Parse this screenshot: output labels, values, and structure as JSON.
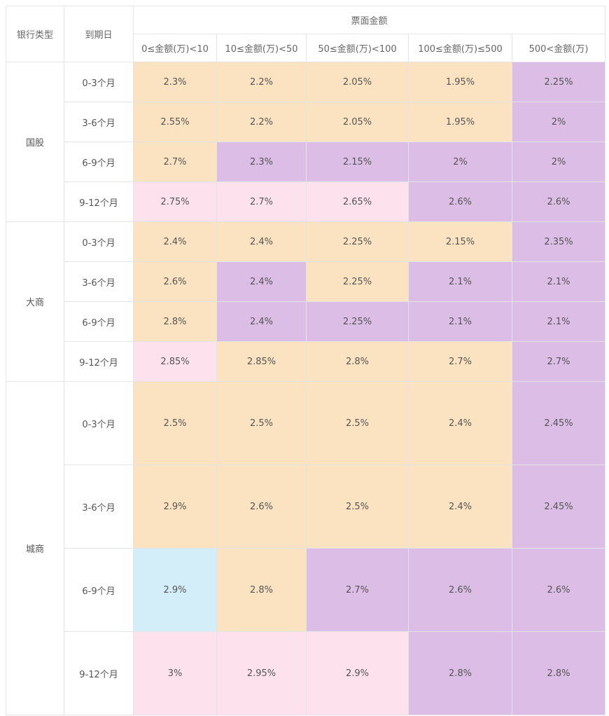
{
  "header": {
    "bank_type": "银行类型",
    "maturity": "到期日",
    "face_amount": "票面金额",
    "amount_ranges": [
      "0≤金额(万)<10",
      "10≤金额(万)<50",
      "50≤金额(万)<100",
      "100≤金额(万)≤500",
      "500<金额(万)"
    ]
  },
  "colors": {
    "peach": "#fbe3c1",
    "purple": "#dcbde5",
    "pink": "#fde2ee",
    "blue": "#d4eef9"
  },
  "groups": [
    {
      "name": "国股",
      "rows": [
        {
          "maturity": "0-3个月",
          "values": [
            "2.3%",
            "2.2%",
            "2.05%",
            "1.95%",
            "2.25%"
          ],
          "colors": [
            "peach",
            "peach",
            "peach",
            "peach",
            "purple"
          ]
        },
        {
          "maturity": "3-6个月",
          "values": [
            "2.55%",
            "2.2%",
            "2.05%",
            "1.95%",
            "2%"
          ],
          "colors": [
            "peach",
            "peach",
            "peach",
            "peach",
            "purple"
          ]
        },
        {
          "maturity": "6-9个月",
          "values": [
            "2.7%",
            "2.3%",
            "2.15%",
            "2%",
            "2%"
          ],
          "colors": [
            "peach",
            "purple",
            "purple",
            "purple",
            "purple"
          ]
        },
        {
          "maturity": "9-12个月",
          "values": [
            "2.75%",
            "2.7%",
            "2.65%",
            "2.6%",
            "2.6%"
          ],
          "colors": [
            "pink",
            "pink",
            "pink",
            "purple",
            "purple"
          ]
        }
      ]
    },
    {
      "name": "大商",
      "rows": [
        {
          "maturity": "0-3个月",
          "values": [
            "2.4%",
            "2.4%",
            "2.25%",
            "2.15%",
            "2.35%"
          ],
          "colors": [
            "peach",
            "peach",
            "peach",
            "peach",
            "purple"
          ]
        },
        {
          "maturity": "3-6个月",
          "values": [
            "2.6%",
            "2.4%",
            "2.25%",
            "2.1%",
            "2.1%"
          ],
          "colors": [
            "peach",
            "purple",
            "peach",
            "purple",
            "purple"
          ]
        },
        {
          "maturity": "6-9个月",
          "values": [
            "2.8%",
            "2.4%",
            "2.25%",
            "2.1%",
            "2.1%"
          ],
          "colors": [
            "peach",
            "purple",
            "purple",
            "purple",
            "purple"
          ]
        },
        {
          "maturity": "9-12个月",
          "values": [
            "2.85%",
            "2.85%",
            "2.8%",
            "2.7%",
            "2.7%"
          ],
          "colors": [
            "pink",
            "peach",
            "peach",
            "peach",
            "purple"
          ]
        }
      ]
    },
    {
      "name": "城商",
      "rows": [
        {
          "maturity": "0-3个月",
          "values": [
            "2.5%",
            "2.5%",
            "2.5%",
            "2.4%",
            "2.45%"
          ],
          "colors": [
            "peach",
            "peach",
            "peach",
            "peach",
            "purple"
          ]
        },
        {
          "maturity": "3-6个月",
          "values": [
            "2.9%",
            "2.6%",
            "2.5%",
            "2.4%",
            "2.45%"
          ],
          "colors": [
            "peach",
            "peach",
            "peach",
            "peach",
            "purple"
          ]
        },
        {
          "maturity": "6-9个月",
          "values": [
            "2.9%",
            "2.8%",
            "2.7%",
            "2.6%",
            "2.6%"
          ],
          "colors": [
            "blue",
            "peach",
            "purple",
            "purple",
            "purple"
          ]
        },
        {
          "maturity": "9-12个月",
          "values": [
            "3%",
            "2.95%",
            "2.9%",
            "2.8%",
            "2.8%"
          ],
          "colors": [
            "pink",
            "pink",
            "pink",
            "purple",
            "purple"
          ]
        }
      ]
    }
  ]
}
